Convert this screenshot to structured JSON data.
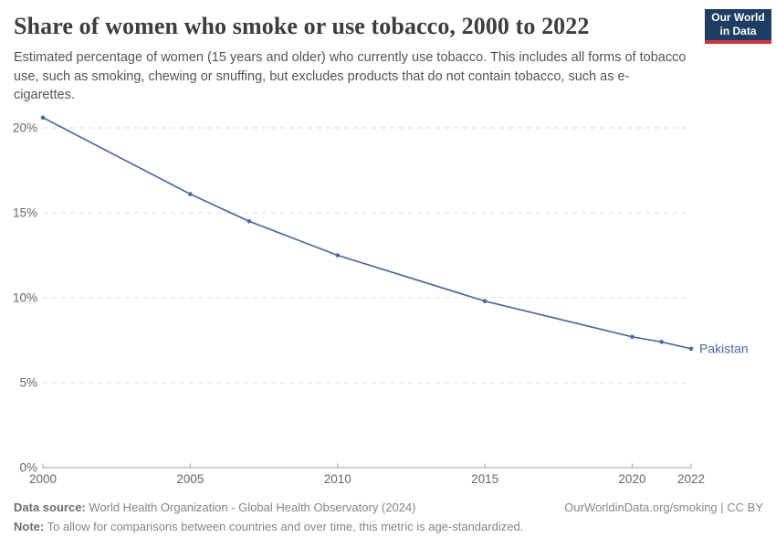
{
  "header": {
    "title": "Share of women who smoke or use tobacco, 2000 to 2022",
    "subtitle": "Estimated percentage of women (15 years and older) who currently use tobacco. This includes all forms of tobacco use, such as smoking, chewing or snuffing, but excludes products that do not contain tobacco, such as e-cigarettes."
  },
  "logo": {
    "line1": "Our World",
    "line2": "in Data",
    "bg_color": "#1d3d63",
    "accent_color": "#d1353e"
  },
  "chart_data": {
    "type": "line",
    "title": "Share of women who smoke or use tobacco, 2000 to 2022",
    "x": [
      2000,
      2005,
      2007,
      2010,
      2015,
      2020,
      2021,
      2022
    ],
    "series": [
      {
        "name": "Pakistan",
        "values": [
          20.6,
          16.1,
          14.5,
          12.5,
          9.8,
          7.7,
          7.4,
          7.0
        ],
        "color": "#4c6a9c"
      }
    ],
    "xlabel": "",
    "ylabel": "",
    "xlim": [
      2000,
      2022
    ],
    "ylim": [
      0,
      20.7
    ],
    "xticks": [
      2000,
      2005,
      2010,
      2015,
      2020,
      2022
    ],
    "yticks": [
      0,
      5,
      10,
      15,
      20
    ],
    "ytick_suffix": "%",
    "grid": "dashed-horizontal",
    "legend_position": "end-of-line-label",
    "colors": {
      "grid": "#dddddd",
      "axis": "#a1a1a1",
      "tick_label": "#666666"
    }
  },
  "footer": {
    "source_label": "Data source:",
    "source_text": " World Health Organization - Global Health Observatory (2024)",
    "note_label": "Note:",
    "note_text": " To allow for comparisons between countries and over time, this metric is age-standardized.",
    "link_text": "OurWorldinData.org/smoking | CC BY"
  }
}
